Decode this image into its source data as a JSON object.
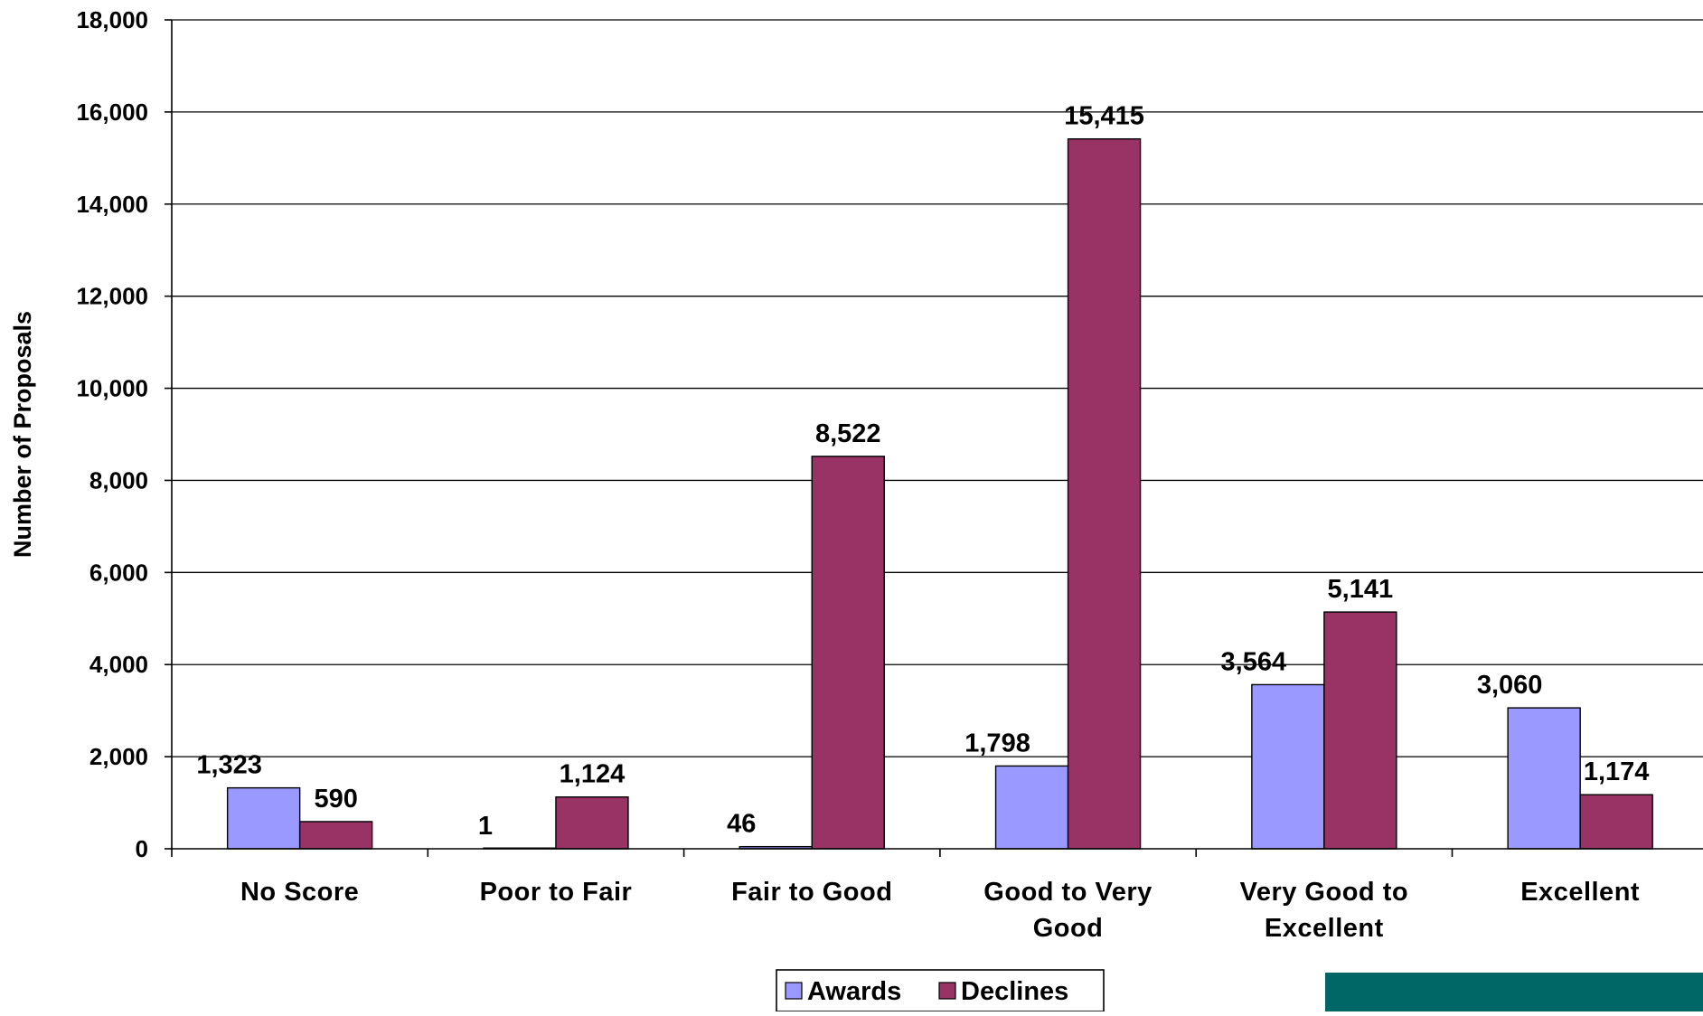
{
  "chart_data": {
    "type": "bar",
    "title": "",
    "xlabel": "",
    "ylabel": "Number of Proposals",
    "ylim": [
      0,
      18000
    ],
    "yticks": [
      0,
      2000,
      4000,
      6000,
      8000,
      10000,
      12000,
      14000,
      16000,
      18000
    ],
    "ytick_labels": [
      "0",
      "2,000",
      "4,000",
      "6,000",
      "8,000",
      "10,000",
      "12,000",
      "14,000",
      "16,000",
      "18,000"
    ],
    "grid": true,
    "legend": "bottom-center",
    "categories": [
      [
        "No Score"
      ],
      [
        "Poor to Fair"
      ],
      [
        "Fair to Good"
      ],
      [
        "Good to Very",
        "Good"
      ],
      [
        "Very Good to",
        "Excellent"
      ],
      [
        "Excellent"
      ]
    ],
    "series": [
      {
        "name": "Awards",
        "color": "#9999ff",
        "values": [
          1323,
          1,
          46,
          1798,
          3564,
          3060
        ],
        "labels": [
          "1,323",
          "1",
          "46",
          "1,798",
          "3,564",
          "3,060"
        ]
      },
      {
        "name": "Declines",
        "color": "#993366",
        "values": [
          590,
          1124,
          8522,
          15415,
          5141,
          1174
        ],
        "labels": [
          "590",
          "1,124",
          "8,522",
          "15,415",
          "5,141",
          "1,174"
        ]
      }
    ]
  },
  "decor": {
    "corner_block_color": "#006666"
  }
}
